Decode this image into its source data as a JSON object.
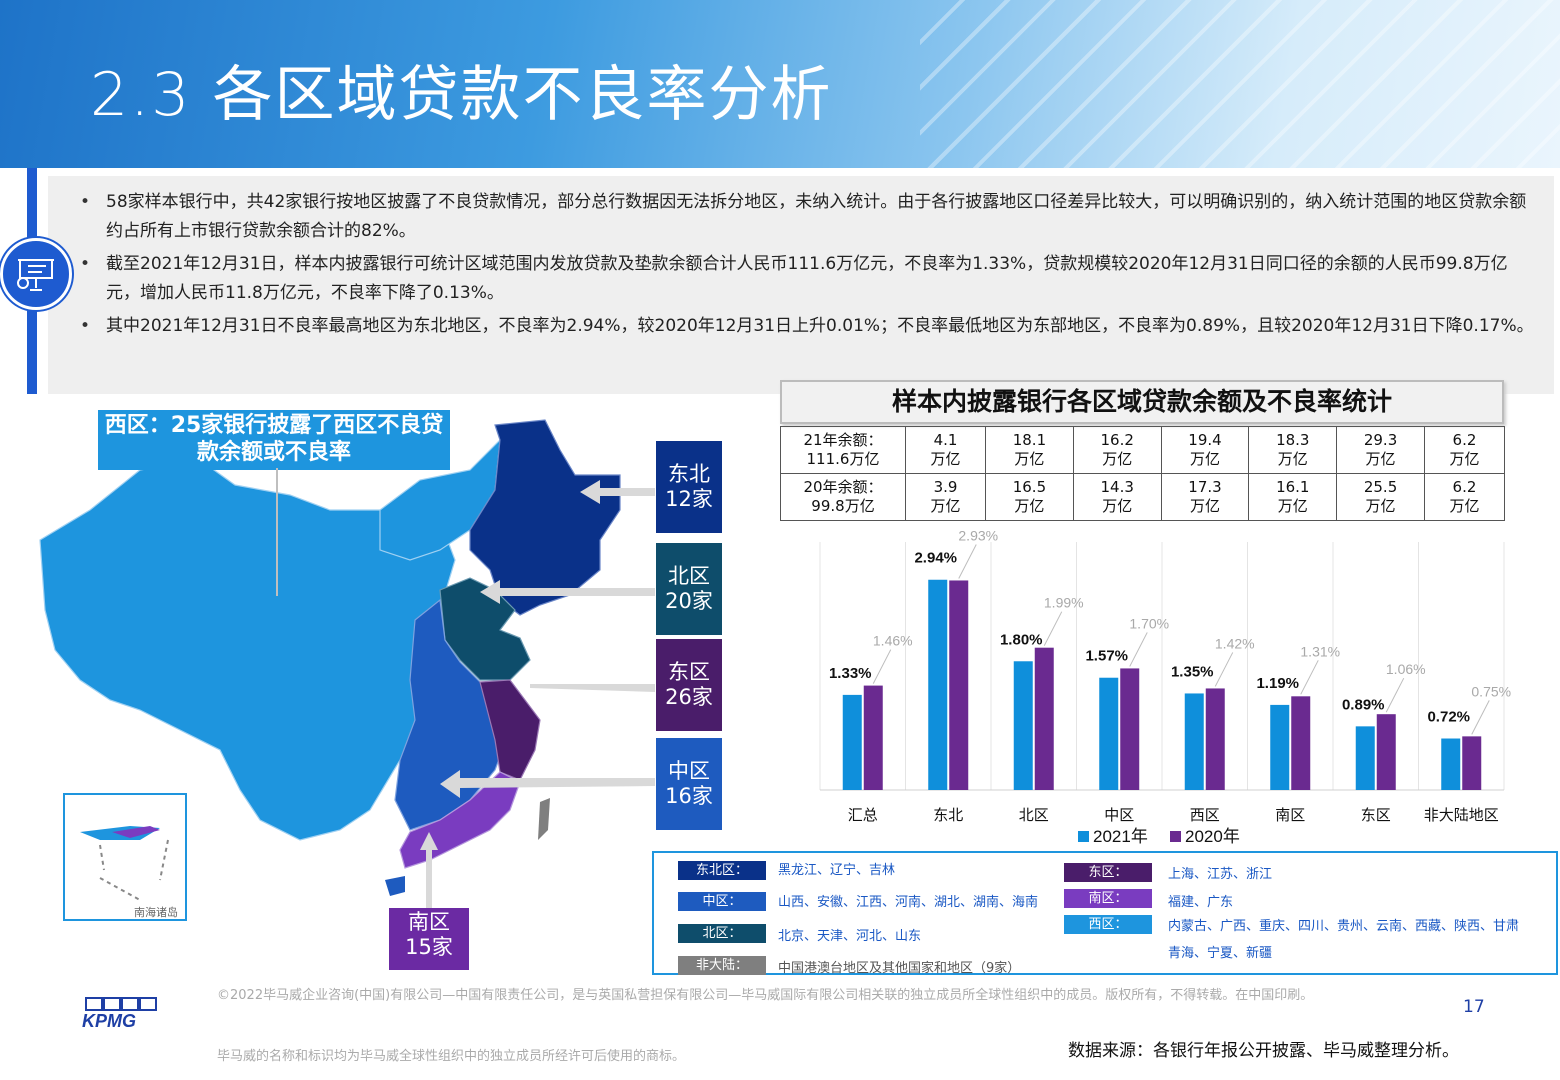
{
  "page": {
    "title": "2.3 各区域贷款不良率分析",
    "bullets": [
      "58家样本银行中，共42家银行按地区披露了不良贷款情况，部分总行数据因无法拆分地区，未纳入统计。由于各行披露地区口径差异比较大，可以明确识别的，纳入统计范围的地区贷款余额约占所有上市银行贷款余额合计的82%。",
      "截至2021年12月31日，样本内披露银行可统计区域范围内发放贷款及垫款余额合计人民币111.6万亿元，不良率为1.33%，贷款规模较2020年12月31日同口径的余额的人民币99.8万亿元，增加人民币11.8万亿元，不良率下降了0.13%。",
      "其中2021年12月31日不良率最高地区为东北地区，不良率为2.94%，较2020年12月31日上升0.01%；不良率最低地区为东部地区，不良率为0.89%，且较2020年12月31日下降0.17%。"
    ],
    "page_number": "17",
    "source": "数据来源：各银行年报公开披露、毕马威整理分析。",
    "footer_line1": "©2022毕马威企业咨询(中国)有限公司—中国有限责任公司，是与英国私营担保有限公司—毕马威国际有限公司相关联的独立成员所全球性组织中的成员。版权所有，不得转载。在中国印刷。",
    "footer_line2": "毕马威的名称和标识均为毕马威全球性组织中的独立成员所经许可后使用的商标。",
    "logo_text": "KPMG"
  },
  "map": {
    "west_callout": "西区：25家银行披露了西区不良贷款余额或不良率",
    "inset_label": "南海诸岛",
    "regions": [
      {
        "name": "东北",
        "count": "12家",
        "color": "#0a3189"
      },
      {
        "name": "北区",
        "count": "20家",
        "color": "#0e4d6b"
      },
      {
        "name": "东区",
        "count": "26家",
        "color": "#4a1d6a"
      },
      {
        "name": "中区",
        "count": "16家",
        "color": "#1e5bbf"
      }
    ],
    "south": {
      "name": "南区",
      "count": "15家",
      "color": "#6b2aa3"
    },
    "colors": {
      "west": "#1e95de",
      "central": "#1e5bbf",
      "northeast": "#0a3189",
      "north": "#0e4d6b",
      "east": "#4a1d6a",
      "south": "#7a3cc0"
    }
  },
  "table": {
    "title": "样本内披露银行各区域贷款余额及不良率统计",
    "rows": [
      {
        "label": [
          "21年余额：",
          "111.6万亿"
        ],
        "cells": [
          [
            "4.1",
            "万亿"
          ],
          [
            "18.1",
            "万亿"
          ],
          [
            "16.2",
            "万亿"
          ],
          [
            "19.4",
            "万亿"
          ],
          [
            "18.3",
            "万亿"
          ],
          [
            "29.3",
            "万亿"
          ],
          [
            "6.2",
            "万亿"
          ]
        ]
      },
      {
        "label": [
          "20年余额：",
          "99.8万亿"
        ],
        "cells": [
          [
            "3.9",
            "万亿"
          ],
          [
            "16.5",
            "万亿"
          ],
          [
            "14.3",
            "万亿"
          ],
          [
            "17.3",
            "万亿"
          ],
          [
            "16.1",
            "万亿"
          ],
          [
            "25.5",
            "万亿"
          ],
          [
            "6.2",
            "万亿"
          ]
        ]
      }
    ]
  },
  "chart_data": {
    "type": "bar",
    "categories": [
      "汇总",
      "东北",
      "北区",
      "中区",
      "西区",
      "南区",
      "东区",
      "非大陆地区"
    ],
    "series": [
      {
        "name": "2021年",
        "color": "#0f8fdb",
        "values": [
          1.33,
          2.94,
          1.8,
          1.57,
          1.35,
          1.19,
          0.89,
          0.72
        ],
        "labels": [
          "1.33%",
          "2.94%",
          "1.80%",
          "1.57%",
          "1.35%",
          "1.19%",
          "0.89%",
          "0.72%"
        ]
      },
      {
        "name": "2020年",
        "color": "#6a2a90",
        "values": [
          1.46,
          2.93,
          1.99,
          1.7,
          1.42,
          1.31,
          1.06,
          0.75
        ],
        "labels": [
          "1.46%",
          "2.93%",
          "1.99%",
          "1.70%",
          "1.42%",
          "1.31%",
          "1.06%",
          "0.75%"
        ]
      }
    ],
    "ylim": [
      0,
      3.3
    ],
    "grid": "vertical separators between categories",
    "legend": "bottom-center"
  },
  "legend_table": [
    {
      "tag": "东北区：",
      "color": "#0a3189",
      "text": "黑龙江、辽宁、吉林"
    },
    {
      "tag": "中区：",
      "color": "#1e5bbf",
      "text": "山西、安徽、江西、河南、湖北、湖南、海南"
    },
    {
      "tag": "北区：",
      "color": "#0e4d6b",
      "text": "北京、天津、河北、山东"
    },
    {
      "tag": "非大陆：",
      "color": "#7f7f7f",
      "text": "中国港澳台地区及其他国家和地区（9家）"
    },
    {
      "tag": "东区：",
      "color": "#4a1d6a",
      "text": "上海、江苏、浙江"
    },
    {
      "tag": "南区：",
      "color": "#7a3cc0",
      "text": "福建、广东"
    },
    {
      "tag": "西区：",
      "color": "#1e95de",
      "text": "内蒙古、广西、重庆、四川、贵州、云南、西藏、陕西、甘肃",
      "text2": "青海、宁夏、新疆"
    }
  ]
}
